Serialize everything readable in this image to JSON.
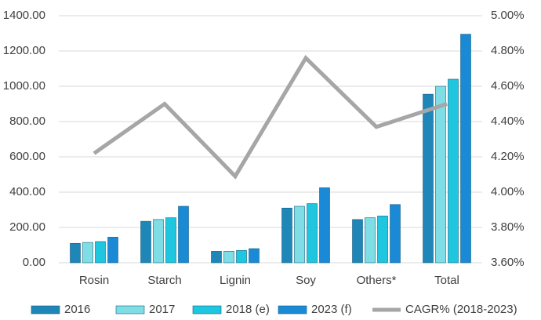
{
  "chart_data": {
    "type": "bar",
    "categories": [
      "Rosin",
      "Starch",
      "Lignin",
      "Soy",
      "Others*",
      "Total"
    ],
    "series": [
      {
        "name": "2016",
        "color": "#1f86b8",
        "values": [
          110,
          235,
          65,
          310,
          245,
          955
        ]
      },
      {
        "name": "2017",
        "color": "#7fdde6",
        "values": [
          115,
          245,
          65,
          320,
          255,
          1000
        ]
      },
      {
        "name": "2018 (e)",
        "color": "#1ec6e0",
        "values": [
          120,
          255,
          70,
          335,
          265,
          1040
        ]
      },
      {
        "name": "2023 (f)",
        "color": "#1a8ad6",
        "values": [
          145,
          320,
          80,
          425,
          330,
          1295
        ]
      },
      {
        "name": "CAGR% (2018-2023)",
        "color": "#a6a6a6",
        "type": "line",
        "axis": "y2",
        "values": [
          4.22,
          4.5,
          4.09,
          4.76,
          4.37,
          4.5
        ]
      }
    ],
    "ylim": [
      0,
      1400
    ],
    "yticks": [
      {
        "value": 0,
        "label": "0.00"
      },
      {
        "value": 200,
        "label": "200.00"
      },
      {
        "value": 400,
        "label": "400.00"
      },
      {
        "value": 600,
        "label": "600.00"
      },
      {
        "value": 800,
        "label": "800.00"
      },
      {
        "value": 1000,
        "label": "1000.00"
      },
      {
        "value": 1200,
        "label": "1200.00"
      },
      {
        "value": 1400,
        "label": "1400.00"
      }
    ],
    "y2lim": [
      3.6,
      5.0
    ],
    "y2ticks": [
      {
        "value": 3.6,
        "label": "3.60%"
      },
      {
        "value": 3.8,
        "label": "3.80%"
      },
      {
        "value": 4.0,
        "label": "4.00%"
      },
      {
        "value": 4.2,
        "label": "4.20%"
      },
      {
        "value": 4.4,
        "label": "4.40%"
      },
      {
        "value": 4.6,
        "label": "4.60%"
      },
      {
        "value": 4.8,
        "label": "4.80%"
      },
      {
        "value": 5.0,
        "label": "5.00%"
      }
    ],
    "grid": true,
    "legend": "bottom"
  }
}
